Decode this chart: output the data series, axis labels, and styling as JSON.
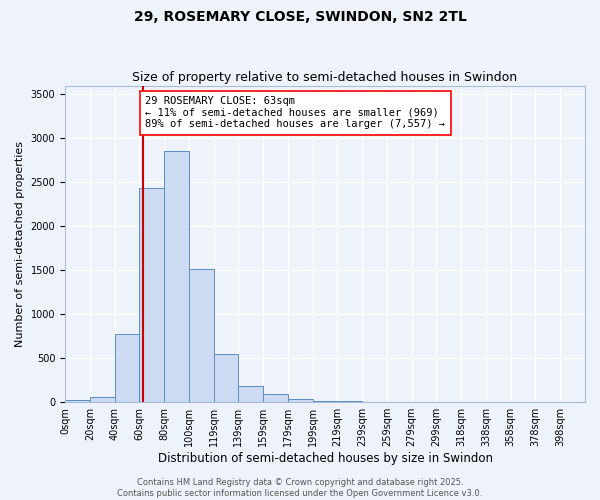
{
  "title_line1": "29, ROSEMARY CLOSE, SWINDON, SN2 2TL",
  "title_line2": "Size of property relative to semi-detached houses in Swindon",
  "xlabel": "Distribution of semi-detached houses by size in Swindon",
  "ylabel": "Number of semi-detached properties",
  "bar_labels": [
    "0sqm",
    "20sqm",
    "40sqm",
    "60sqm",
    "80sqm",
    "100sqm",
    "119sqm",
    "139sqm",
    "159sqm",
    "179sqm",
    "199sqm",
    "219sqm",
    "239sqm",
    "259sqm",
    "279sqm",
    "299sqm",
    "318sqm",
    "338sqm",
    "358sqm",
    "378sqm",
    "398sqm"
  ],
  "bar_values": [
    20,
    55,
    780,
    2440,
    2860,
    1520,
    550,
    190,
    90,
    35,
    15,
    10,
    5,
    2,
    1,
    1,
    0,
    0,
    0,
    0,
    0
  ],
  "bar_color": "#ccdaf2",
  "bar_edge_color": "#5b8ec4",
  "vline_color": "#cc0000",
  "annotation_text": "29 ROSEMARY CLOSE: 63sqm\n← 11% of semi-detached houses are smaller (969)\n89% of semi-detached houses are larger (7,557) →",
  "ylim": [
    0,
    3600
  ],
  "yticks": [
    0,
    500,
    1000,
    1500,
    2000,
    2500,
    3000,
    3500
  ],
  "bg_color": "#eef2fb",
  "grid_color": "#ffffff",
  "footer_text": "Contains HM Land Registry data © Crown copyright and database right 2025.\nContains public sector information licensed under the Open Government Licence v3.0.",
  "title_fontsize": 10,
  "subtitle_fontsize": 9,
  "tick_fontsize": 7,
  "ylabel_fontsize": 8,
  "xlabel_fontsize": 8.5,
  "footer_fontsize": 6,
  "annotation_fontsize": 7.5
}
